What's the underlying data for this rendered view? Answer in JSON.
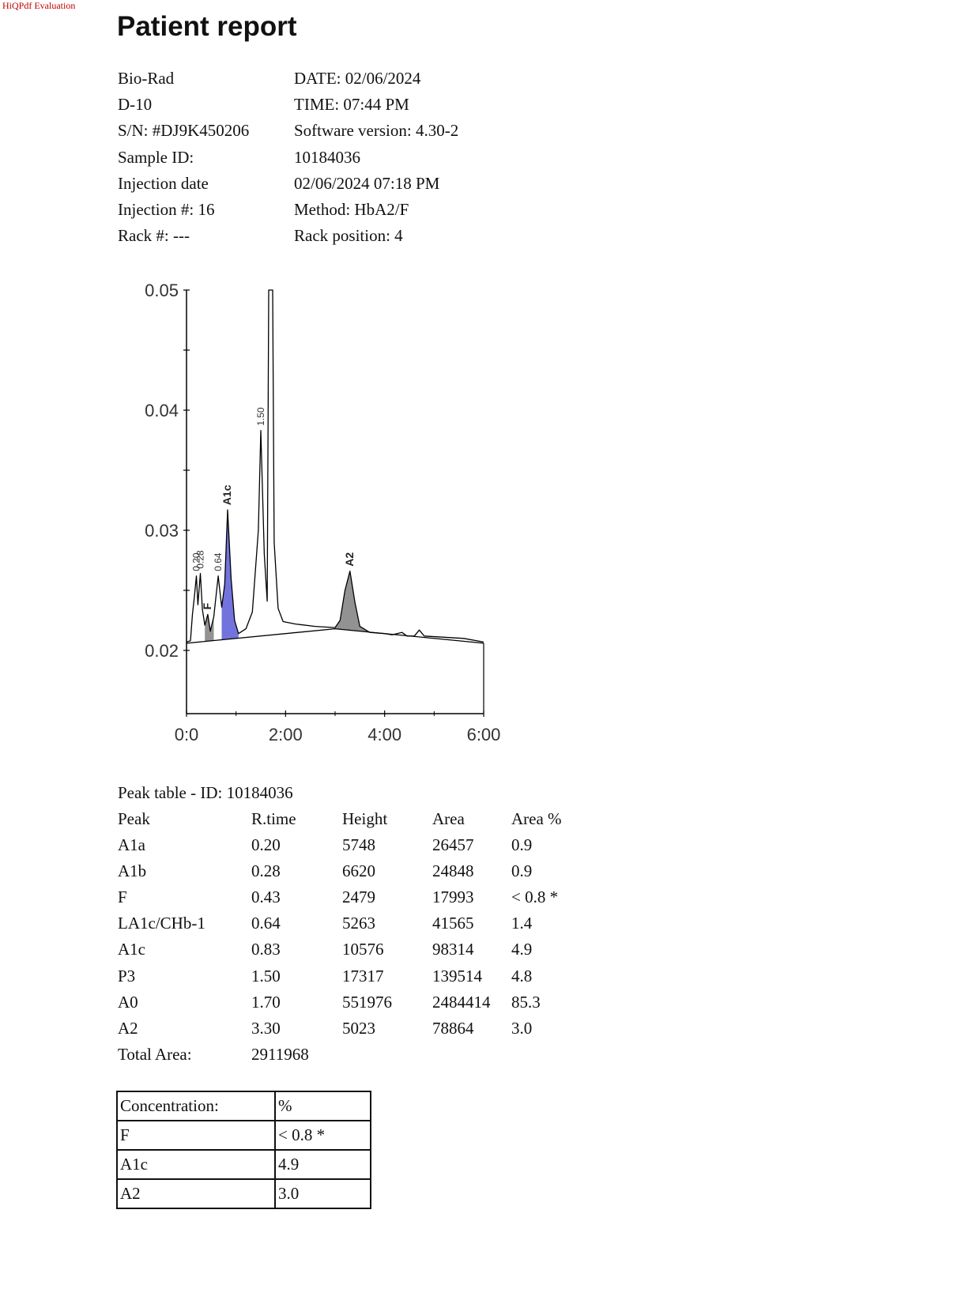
{
  "watermark": "HiQPdf Evaluation",
  "title": "Patient report",
  "info": [
    {
      "label": "Bio-Rad",
      "value": "DATE: 02/06/2024"
    },
    {
      "label": "D-10",
      "value": "TIME:  07:44 PM"
    },
    {
      "label": "S/N: #DJ9K450206",
      "value": "Software version: 4.30-2"
    },
    {
      "label": "Sample ID:",
      "value": "10184036"
    },
    {
      "label": "Injection date",
      "value": "02/06/2024 07:18 PM"
    },
    {
      "label": "Injection #: 16",
      "value": "Method: HbA2/F"
    },
    {
      "label": "Rack #: ---",
      "value": "Rack position: 4"
    }
  ],
  "chart_data": {
    "type": "line",
    "title": "",
    "xlabel": "",
    "ylabel": "",
    "x_ticks": [
      "0:0",
      "2:00",
      "4:00",
      "6:00"
    ],
    "y_ticks": [
      "0.05",
      "0.04",
      "0.03",
      "0.02"
    ],
    "xlim_min": [
      0,
      6
    ],
    "ylim": [
      0.015,
      0.05
    ],
    "grid": false,
    "colors": {
      "A1c": "#5a5ad8",
      "shaded": "#7f7f7f",
      "line": "#000000"
    },
    "baseline": [
      [
        0.0,
        0.0206
      ],
      [
        3.0,
        0.0218
      ],
      [
        6.0,
        0.0206
      ]
    ],
    "points": [
      [
        0.0,
        0.0207
      ],
      [
        0.08,
        0.0208
      ],
      [
        0.12,
        0.023
      ],
      [
        0.16,
        0.0245
      ],
      [
        0.2,
        0.0262
      ],
      [
        0.23,
        0.0238
      ],
      [
        0.28,
        0.0264
      ],
      [
        0.32,
        0.0234
      ],
      [
        0.37,
        0.0221
      ],
      [
        0.43,
        0.023
      ],
      [
        0.48,
        0.0216
      ],
      [
        0.55,
        0.0228
      ],
      [
        0.64,
        0.0262
      ],
      [
        0.71,
        0.0236
      ],
      [
        0.77,
        0.0255
      ],
      [
        0.83,
        0.0317
      ],
      [
        0.9,
        0.026
      ],
      [
        0.97,
        0.0225
      ],
      [
        1.05,
        0.0214
      ],
      [
        1.2,
        0.0218
      ],
      [
        1.33,
        0.0232
      ],
      [
        1.45,
        0.03
      ],
      [
        1.5,
        0.0383
      ],
      [
        1.57,
        0.028
      ],
      [
        1.63,
        0.0241
      ],
      [
        1.66,
        0.05
      ],
      [
        1.74,
        0.05
      ],
      [
        1.77,
        0.029
      ],
      [
        1.85,
        0.0235
      ],
      [
        1.95,
        0.0224
      ],
      [
        2.2,
        0.0222
      ],
      [
        2.6,
        0.022
      ],
      [
        3.0,
        0.0219
      ],
      [
        3.1,
        0.0225
      ],
      [
        3.2,
        0.025
      ],
      [
        3.3,
        0.0266
      ],
      [
        3.4,
        0.024
      ],
      [
        3.5,
        0.022
      ],
      [
        3.7,
        0.0215
      ],
      [
        4.0,
        0.0214
      ],
      [
        4.15,
        0.0213
      ],
      [
        4.35,
        0.0215
      ],
      [
        4.45,
        0.0212
      ],
      [
        4.6,
        0.0212
      ],
      [
        4.7,
        0.0217
      ],
      [
        4.8,
        0.0212
      ],
      [
        5.2,
        0.0211
      ],
      [
        5.6,
        0.021
      ],
      [
        6.0,
        0.0207
      ]
    ],
    "peaks": [
      {
        "label": "0.20",
        "x": 0.2,
        "y": 0.0262
      },
      {
        "label": "0.28",
        "x": 0.28,
        "y": 0.0264
      },
      {
        "label": "F",
        "x": 0.43,
        "y": 0.023
      },
      {
        "label": "0.64",
        "x": 0.64,
        "y": 0.0262
      },
      {
        "label": "A1c",
        "x": 0.83,
        "y": 0.0317
      },
      {
        "label": "1.50",
        "x": 1.5,
        "y": 0.0383
      },
      {
        "label": "A2",
        "x": 3.3,
        "y": 0.0266
      }
    ],
    "shaded_regions": [
      {
        "name": "F",
        "x0": 0.37,
        "x1": 0.55,
        "color": "shaded"
      },
      {
        "name": "A1c",
        "x0": 0.71,
        "x1": 1.05,
        "color": "A1c"
      },
      {
        "name": "A2",
        "x0": 3.0,
        "x1": 3.7,
        "color": "shaded"
      }
    ]
  },
  "peak_table": {
    "caption": "Peak table  -  ID: 10184036",
    "headers": [
      "Peak",
      "R.time",
      "Height",
      "Area",
      "Area %"
    ],
    "rows": [
      [
        "A1a",
        "0.20",
        "5748",
        "26457",
        "0.9"
      ],
      [
        "A1b",
        "0.28",
        "6620",
        "24848",
        "0.9"
      ],
      [
        "F",
        "0.43",
        "2479",
        "17993",
        "<  0.8 *"
      ],
      [
        "LA1c/CHb-1",
        "0.64",
        "5263",
        "41565",
        "1.4"
      ],
      [
        "A1c",
        "0.83",
        "10576",
        "98314",
        "4.9"
      ],
      [
        "P3",
        "1.50",
        "17317",
        "139514",
        "4.8"
      ],
      [
        "A0",
        "1.70",
        "551976",
        "2484414",
        "85.3"
      ],
      [
        "A2",
        "3.30",
        "5023",
        "78864",
        "3.0"
      ]
    ],
    "total_label": "Total Area:",
    "total_value": "2911968"
  },
  "concentration": {
    "header": [
      "Concentration:",
      "%"
    ],
    "rows": [
      [
        "F",
        "<  0.8 *"
      ],
      [
        "A1c",
        "4.9"
      ],
      [
        "A2",
        "3.0"
      ]
    ]
  }
}
